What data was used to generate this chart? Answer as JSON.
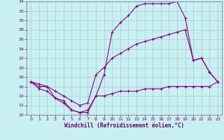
{
  "xlabel": "Windchill (Refroidissement éolien,°C)",
  "background_color": "#c8f0f0",
  "grid_color": "#a8c8d8",
  "line_color": "#880088",
  "xlim": [
    -0.5,
    23.5
  ],
  "ylim": [
    10,
    34
  ],
  "xticks": [
    0,
    1,
    2,
    3,
    4,
    5,
    6,
    7,
    8,
    9,
    10,
    11,
    12,
    13,
    14,
    15,
    16,
    17,
    18,
    19,
    20,
    21,
    22,
    23
  ],
  "yticks": [
    10,
    12,
    14,
    16,
    18,
    20,
    22,
    24,
    26,
    28,
    30,
    32,
    34
  ],
  "line1_x": [
    0,
    1,
    2,
    3,
    4,
    5,
    6,
    7,
    8,
    9,
    10,
    11,
    12,
    13,
    14,
    15,
    16,
    17,
    18,
    19,
    20,
    21,
    22,
    23
  ],
  "line1_y": [
    17,
    15.5,
    15,
    13.5,
    12.5,
    11,
    10.5,
    10.5,
    14,
    14,
    14.5,
    15,
    15,
    15,
    15.5,
    15.5,
    15.5,
    16,
    16,
    16,
    16,
    16,
    16,
    17
  ],
  "line2_x": [
    0,
    1,
    2,
    3,
    4,
    5,
    6,
    7,
    8,
    9,
    10,
    11,
    12,
    13,
    14,
    15,
    16,
    17,
    18,
    19,
    20,
    21,
    22,
    23
  ],
  "line2_y": [
    17,
    16,
    16,
    15,
    14,
    13,
    12,
    12.5,
    18.5,
    20,
    22,
    23,
    24,
    25,
    25.5,
    26,
    26.5,
    27,
    27.5,
    28,
    21.5,
    22,
    19,
    17
  ],
  "line3_x": [
    0,
    1,
    2,
    3,
    4,
    5,
    6,
    7,
    8,
    9,
    10,
    11,
    12,
    13,
    14,
    15,
    16,
    17,
    18,
    19,
    20,
    21,
    22,
    23
  ],
  "line3_y": [
    17,
    16.5,
    16,
    13.5,
    13,
    11,
    10.5,
    11,
    14,
    18.5,
    27.5,
    29.5,
    31,
    33,
    33.5,
    33.5,
    33.5,
    33.5,
    34,
    30.5,
    21.5,
    22,
    19,
    17
  ]
}
